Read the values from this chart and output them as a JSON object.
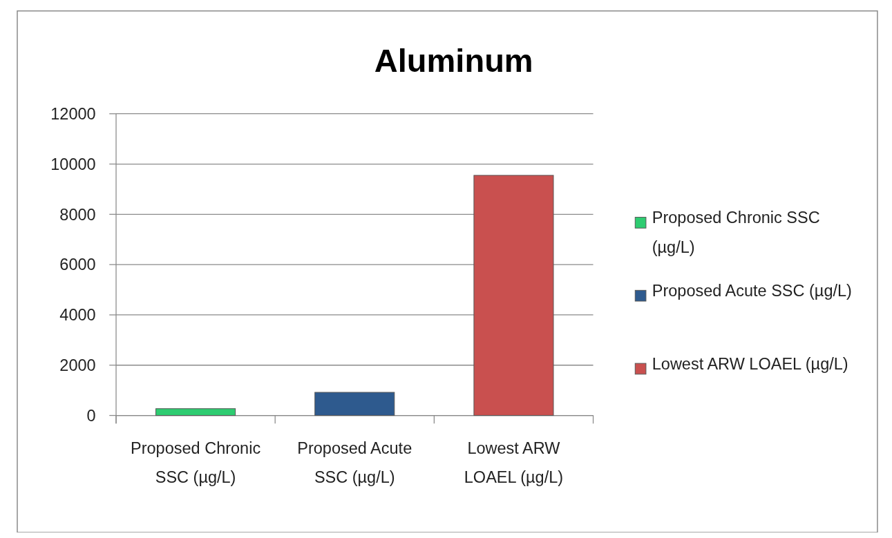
{
  "chart_data": {
    "type": "bar",
    "title": "Aluminum",
    "categories": [
      "Proposed Chronic SSC (µg/L)",
      "Proposed Acute SSC (µg/L)",
      "Lowest ARW LOAEL (µg/L)"
    ],
    "series": [
      {
        "name": "Proposed Chronic SSC (µg/L)",
        "color": "#2ecc71",
        "values": [
          270,
          null,
          null
        ]
      },
      {
        "name": "Proposed Acute SSC (µg/L)",
        "color": "#2e5a8e",
        "values": [
          null,
          920,
          null
        ]
      },
      {
        "name": "Lowest ARW LOAEL (µg/L)",
        "color": "#c9504f",
        "values": [
          null,
          null,
          9550
        ]
      }
    ],
    "ylim": [
      0,
      12000
    ],
    "yticks": [
      0,
      2000,
      4000,
      6000,
      8000,
      10000,
      12000
    ],
    "grid": "y",
    "legend": "right"
  }
}
